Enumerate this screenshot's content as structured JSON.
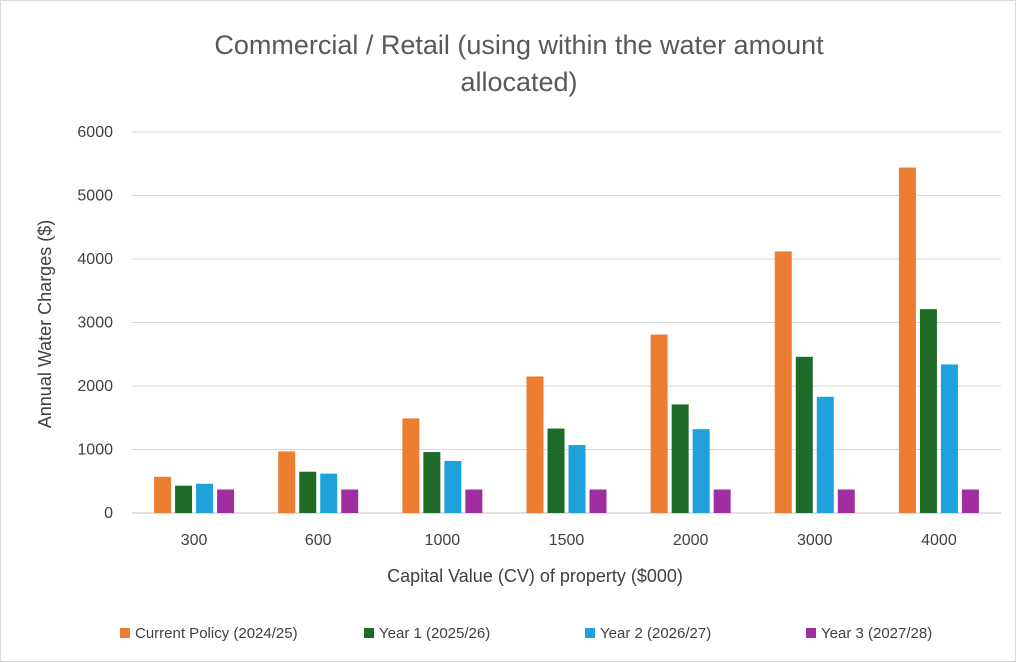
{
  "chart_data": {
    "type": "bar",
    "title_lines": [
      "Commercial / Retail (using within the water amount",
      "allocated)"
    ],
    "xlabel": "Capital Value (CV) of property ($000)",
    "ylabel": "Annual Water Charges ($)",
    "ylim": [
      0,
      6000
    ],
    "yticks": [
      "0",
      "1000",
      "2000",
      "3000",
      "4000",
      "5000",
      "6000"
    ],
    "categories": [
      "300",
      "600",
      "1000",
      "1500",
      "2000",
      "3000",
      "4000"
    ],
    "grid": true,
    "legend_position": "bottom",
    "series": [
      {
        "name": "Current Policy (2024/25)",
        "color": "#ED7D31",
        "values": [
          570,
          970,
          1490,
          2150,
          2810,
          4120,
          5440
        ]
      },
      {
        "name": "Year 1 (2025/26)",
        "color": "#1E6B28",
        "values": [
          430,
          650,
          960,
          1330,
          1710,
          2460,
          3210
        ]
      },
      {
        "name": "Year 2 (2026/27)",
        "color": "#1FA2DC",
        "values": [
          460,
          620,
          820,
          1070,
          1320,
          1830,
          2340
        ]
      },
      {
        "name": "Year 3 (2027/28)",
        "color": "#A12EA0",
        "values": [
          370,
          370,
          370,
          370,
          370,
          370,
          370
        ]
      }
    ]
  }
}
